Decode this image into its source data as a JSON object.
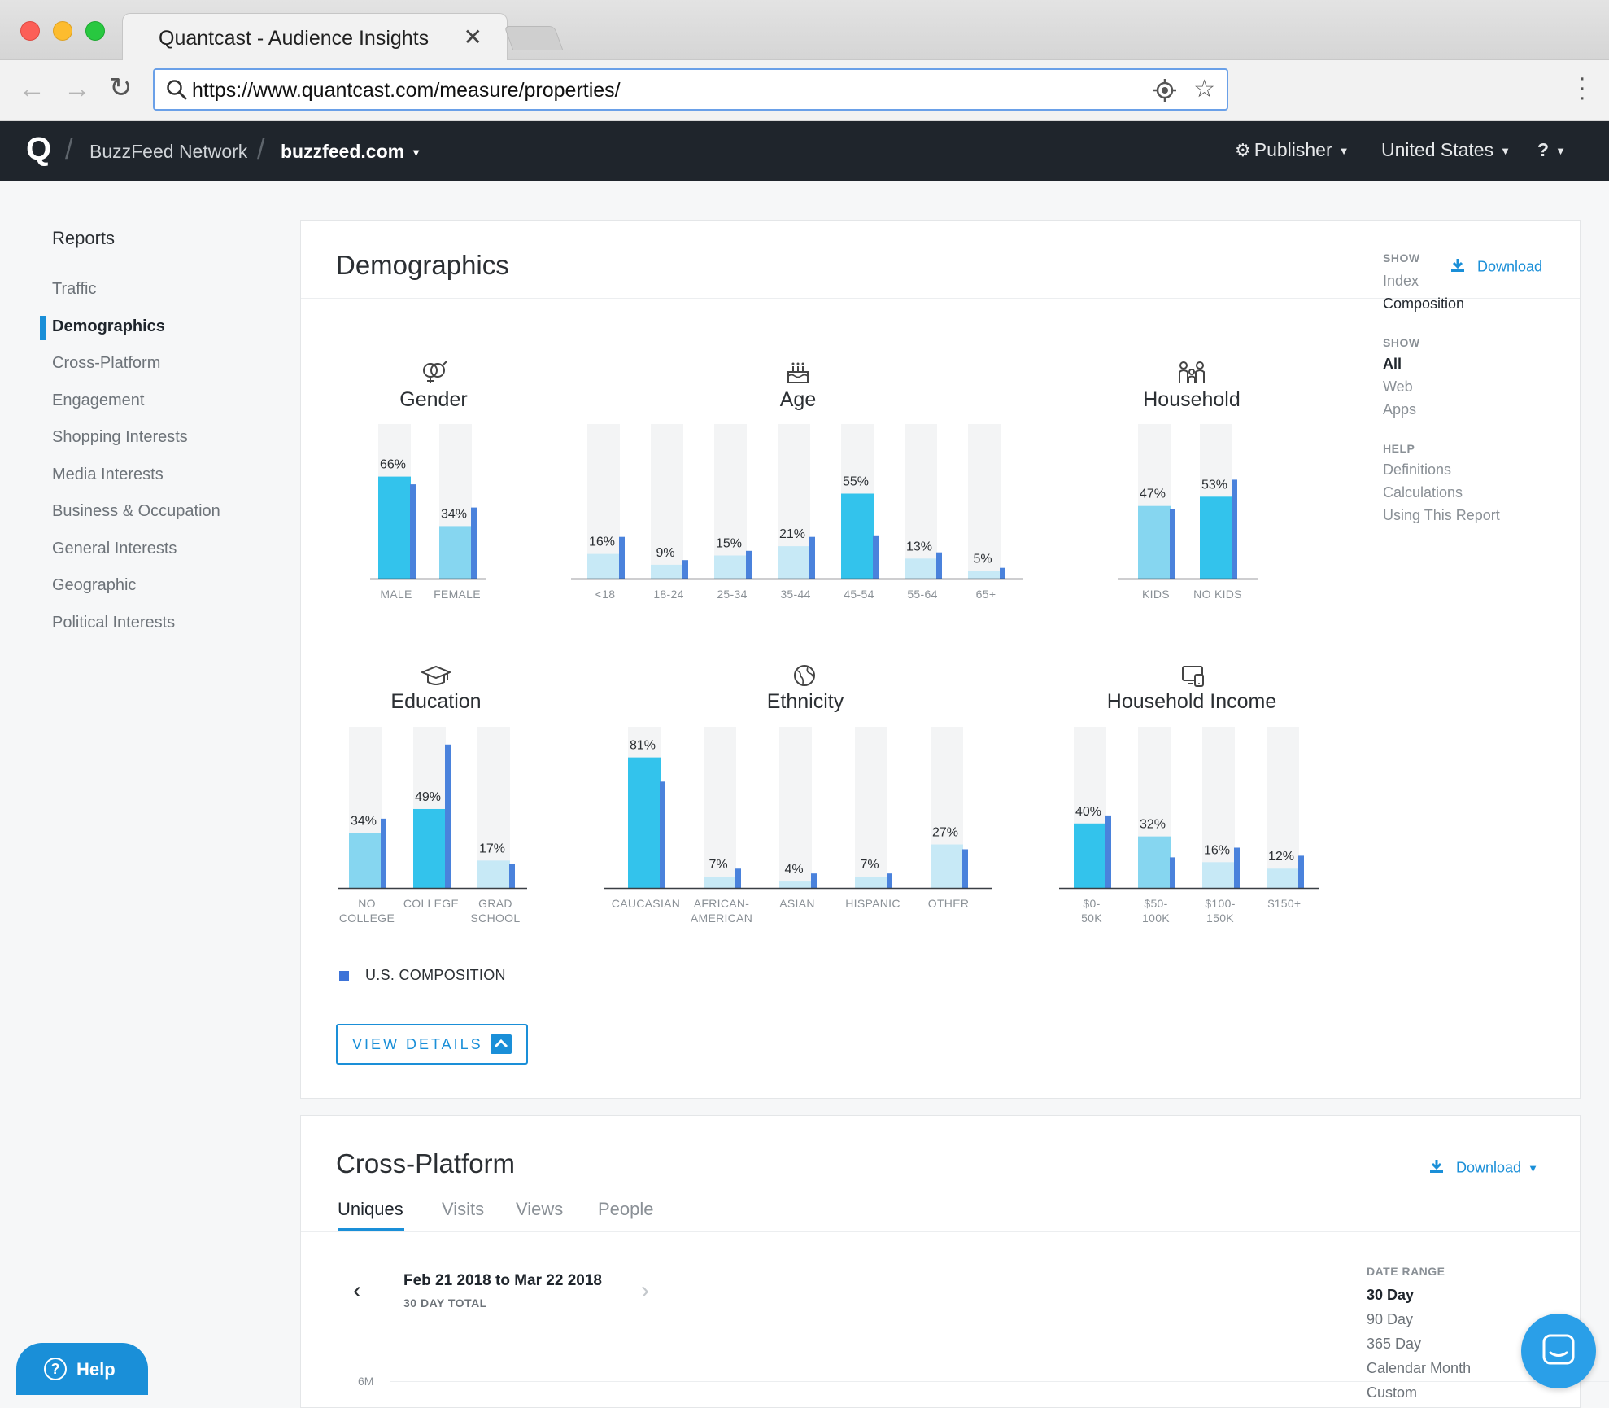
{
  "browser": {
    "tab_title": "Quantcast - Audience Insights",
    "tab_close": "✕",
    "url": "https://www.quantcast.com/measure/properties/"
  },
  "appbar": {
    "logo": "Q",
    "network": "BuzzFeed Network",
    "site": "buzzfeed.com",
    "menu": [
      {
        "label": "Publisher"
      },
      {
        "label": "United States"
      },
      {
        "label": "?"
      }
    ]
  },
  "sidebar": {
    "title": "Reports",
    "items": [
      {
        "label": "Traffic",
        "active": false
      },
      {
        "label": "Demographics",
        "active": true
      },
      {
        "label": "Cross-Platform",
        "active": false
      },
      {
        "label": "Engagement",
        "active": false
      },
      {
        "label": "Shopping Interests",
        "active": false
      },
      {
        "label": "Media Interests",
        "active": false
      },
      {
        "label": "Business & Occupation",
        "active": false
      },
      {
        "label": "General Interests",
        "active": false
      },
      {
        "label": "Geographic",
        "active": false
      },
      {
        "label": "Political Interests",
        "active": false
      }
    ]
  },
  "demographics": {
    "title": "Demographics",
    "download_label": "Download",
    "legend_label": "U.S. COMPOSITION",
    "view_details_label": "VIEW DETAILS",
    "colors": {
      "site_strong": "#33c3ec",
      "site_mid": "#86d6f0",
      "site_light": "#c7e9f6",
      "us_bar": "#4a82dc",
      "track": "#f3f4f5"
    },
    "side_panel": {
      "show1_heading": "SHOW",
      "show1_items": [
        "Index",
        "Composition"
      ],
      "show2_heading": "SHOW",
      "show2_items": [
        "All",
        "Web",
        "Apps"
      ],
      "help_heading": "HELP",
      "help_items": [
        "Definitions",
        "Calculations",
        "Using This Report"
      ]
    }
  },
  "chart_data": [
    {
      "type": "bar",
      "title": "Gender",
      "categories": [
        "MALE",
        "FEMALE"
      ],
      "series": [
        {
          "name": "buzzfeed.com",
          "values": [
            66,
            34
          ]
        },
        {
          "name": "U.S. COMPOSITION",
          "values": [
            61,
            46
          ]
        }
      ],
      "data_labels": [
        "66%",
        "34%"
      ],
      "ylim": [
        0,
        100
      ]
    },
    {
      "type": "bar",
      "title": "Age",
      "categories": [
        "<18",
        "18-24",
        "25-34",
        "35-44",
        "45-54",
        "55-64",
        "65+"
      ],
      "series": [
        {
          "name": "buzzfeed.com",
          "values": [
            16,
            9,
            15,
            21,
            55,
            13,
            5
          ]
        },
        {
          "name": "U.S. COMPOSITION",
          "values": [
            27,
            12,
            18,
            27,
            28,
            17,
            7
          ]
        }
      ],
      "data_labels": [
        "16%",
        "9%",
        "15%",
        "21%",
        "55%",
        "13%",
        "5%"
      ],
      "ylim": [
        0,
        100
      ]
    },
    {
      "type": "bar",
      "title": "Household",
      "categories": [
        "KIDS",
        "NO KIDS"
      ],
      "series": [
        {
          "name": "buzzfeed.com",
          "values": [
            47,
            53
          ]
        },
        {
          "name": "U.S. COMPOSITION",
          "values": [
            45,
            64
          ]
        }
      ],
      "data_labels": [
        "47%",
        "53%"
      ],
      "ylim": [
        0,
        100
      ]
    },
    {
      "type": "bar",
      "title": "Education",
      "categories": [
        "NO COLLEGE",
        "COLLEGE",
        "GRAD SCHOOL"
      ],
      "series": [
        {
          "name": "buzzfeed.com",
          "values": [
            34,
            49,
            17
          ]
        },
        {
          "name": "U.S. COMPOSITION",
          "values": [
            43,
            89,
            15
          ]
        }
      ],
      "data_labels": [
        "34%",
        "49%",
        "17%"
      ],
      "ylim": [
        0,
        100
      ]
    },
    {
      "type": "bar",
      "title": "Ethnicity",
      "categories": [
        "CAUCASIAN",
        "AFRICAN-AMERICAN",
        "ASIAN",
        "HISPANIC",
        "OTHER"
      ],
      "series": [
        {
          "name": "buzzfeed.com",
          "values": [
            81,
            7,
            4,
            7,
            27
          ]
        },
        {
          "name": "U.S. COMPOSITION",
          "values": [
            66,
            12,
            9,
            9,
            24
          ]
        }
      ],
      "data_labels": [
        "81%",
        "7%",
        "4%",
        "7%",
        "27%"
      ],
      "ylim": [
        0,
        100
      ]
    },
    {
      "type": "bar",
      "title": "Household Income",
      "categories": [
        "$0-50K",
        "$50-100K",
        "$100-150K",
        "$150+"
      ],
      "series": [
        {
          "name": "buzzfeed.com",
          "values": [
            40,
            32,
            16,
            12
          ]
        },
        {
          "name": "U.S. COMPOSITION",
          "values": [
            45,
            19,
            25,
            20
          ]
        }
      ],
      "data_labels": [
        "40%",
        "32%",
        "16%",
        "12%"
      ],
      "ylim": [
        0,
        100
      ]
    }
  ],
  "cross_platform": {
    "title": "Cross-Platform",
    "download_label": "Download",
    "tabs": [
      {
        "label": "Uniques",
        "active": true
      },
      {
        "label": "Visits",
        "active": false
      },
      {
        "label": "Views",
        "active": false
      },
      {
        "label": "People",
        "active": false
      }
    ],
    "date_range_text": "Feb 21 2018 to Mar 22 2018",
    "date_sub": "30 DAY TOTAL",
    "axis_top_label": "6M",
    "date_range_heading": "DATE RANGE",
    "date_range_options": [
      {
        "label": "30 Day",
        "active": true
      },
      {
        "label": "90 Day",
        "active": false
      },
      {
        "label": "365 Day",
        "active": false
      },
      {
        "label": "Calendar Month",
        "active": false
      },
      {
        "label": "Custom",
        "active": false
      }
    ]
  },
  "floating": {
    "help_label": "Help"
  }
}
